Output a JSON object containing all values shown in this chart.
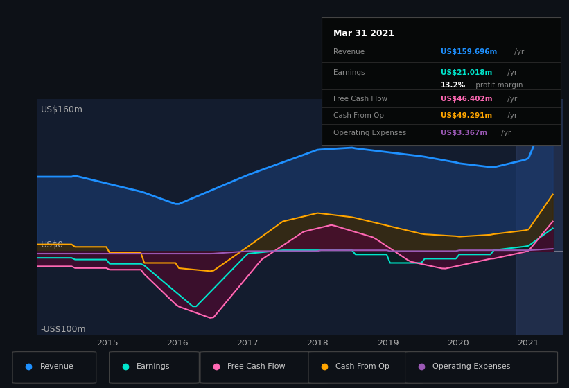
{
  "background_color": "#0d1117",
  "plot_bg_color": "#131c2e",
  "ylabel_top": "US$160m",
  "ylabel_zero": "US$0",
  "ylabel_bottom": "-US$100m",
  "ylim": [
    -100,
    180
  ],
  "xlim": [
    2014.0,
    2021.5
  ],
  "x_ticks": [
    2015,
    2016,
    2017,
    2018,
    2019,
    2020,
    2021
  ],
  "legend_items": [
    {
      "label": "Revenue",
      "color": "#1e90ff"
    },
    {
      "label": "Earnings",
      "color": "#00e5cc"
    },
    {
      "label": "Free Cash Flow",
      "color": "#ff69b4"
    },
    {
      "label": "Cash From Op",
      "color": "#ffa500"
    },
    {
      "label": "Operating Expenses",
      "color": "#9b59b6"
    }
  ],
  "highlight_color": "#2a3a5e",
  "revenue_color": "#1e90ff",
  "revenue_fill": "#1a3a6e",
  "earnings_color": "#00e5cc",
  "earnings_fill": "#0a2020",
  "fcf_color": "#ff69b4",
  "fcf_fill": "#4a0a30",
  "cfo_color": "#ffa500",
  "cfo_fill": "#3d2800",
  "opex_color": "#9b59b6",
  "opex_fill": "#2d1040"
}
